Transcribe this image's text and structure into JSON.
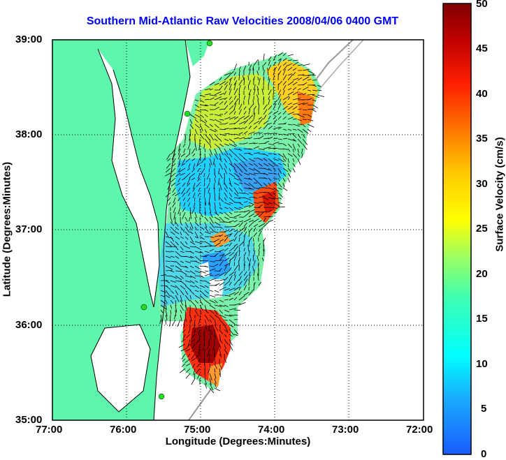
{
  "title": "Southern Mid-Atlantic Raw Velocities 2008/04/06 0400 GMT",
  "xlabel": "Longitude (Degrees:Minutes)",
  "ylabel": "Latitude (Degrees:Minutes)",
  "colorbar": {
    "label": "Surface Velocity (cm/s)",
    "ticks": [
      "50",
      "45",
      "40",
      "35",
      "30",
      "25",
      "20",
      "15",
      "10",
      "5",
      "0"
    ],
    "min": 0,
    "max": 50
  },
  "x_ticks": [
    "77:00",
    "76:00",
    "75:00",
    "74:00",
    "73:00",
    "72:00"
  ],
  "y_ticks": [
    "39:00",
    "38:00",
    "37:00",
    "36:00",
    "35:00"
  ],
  "colors": {
    "land": "#5ef5ac",
    "title": "#0000ff",
    "coastline": "#000000",
    "bathymetry": "#999999",
    "station": "#22dd22"
  }
}
